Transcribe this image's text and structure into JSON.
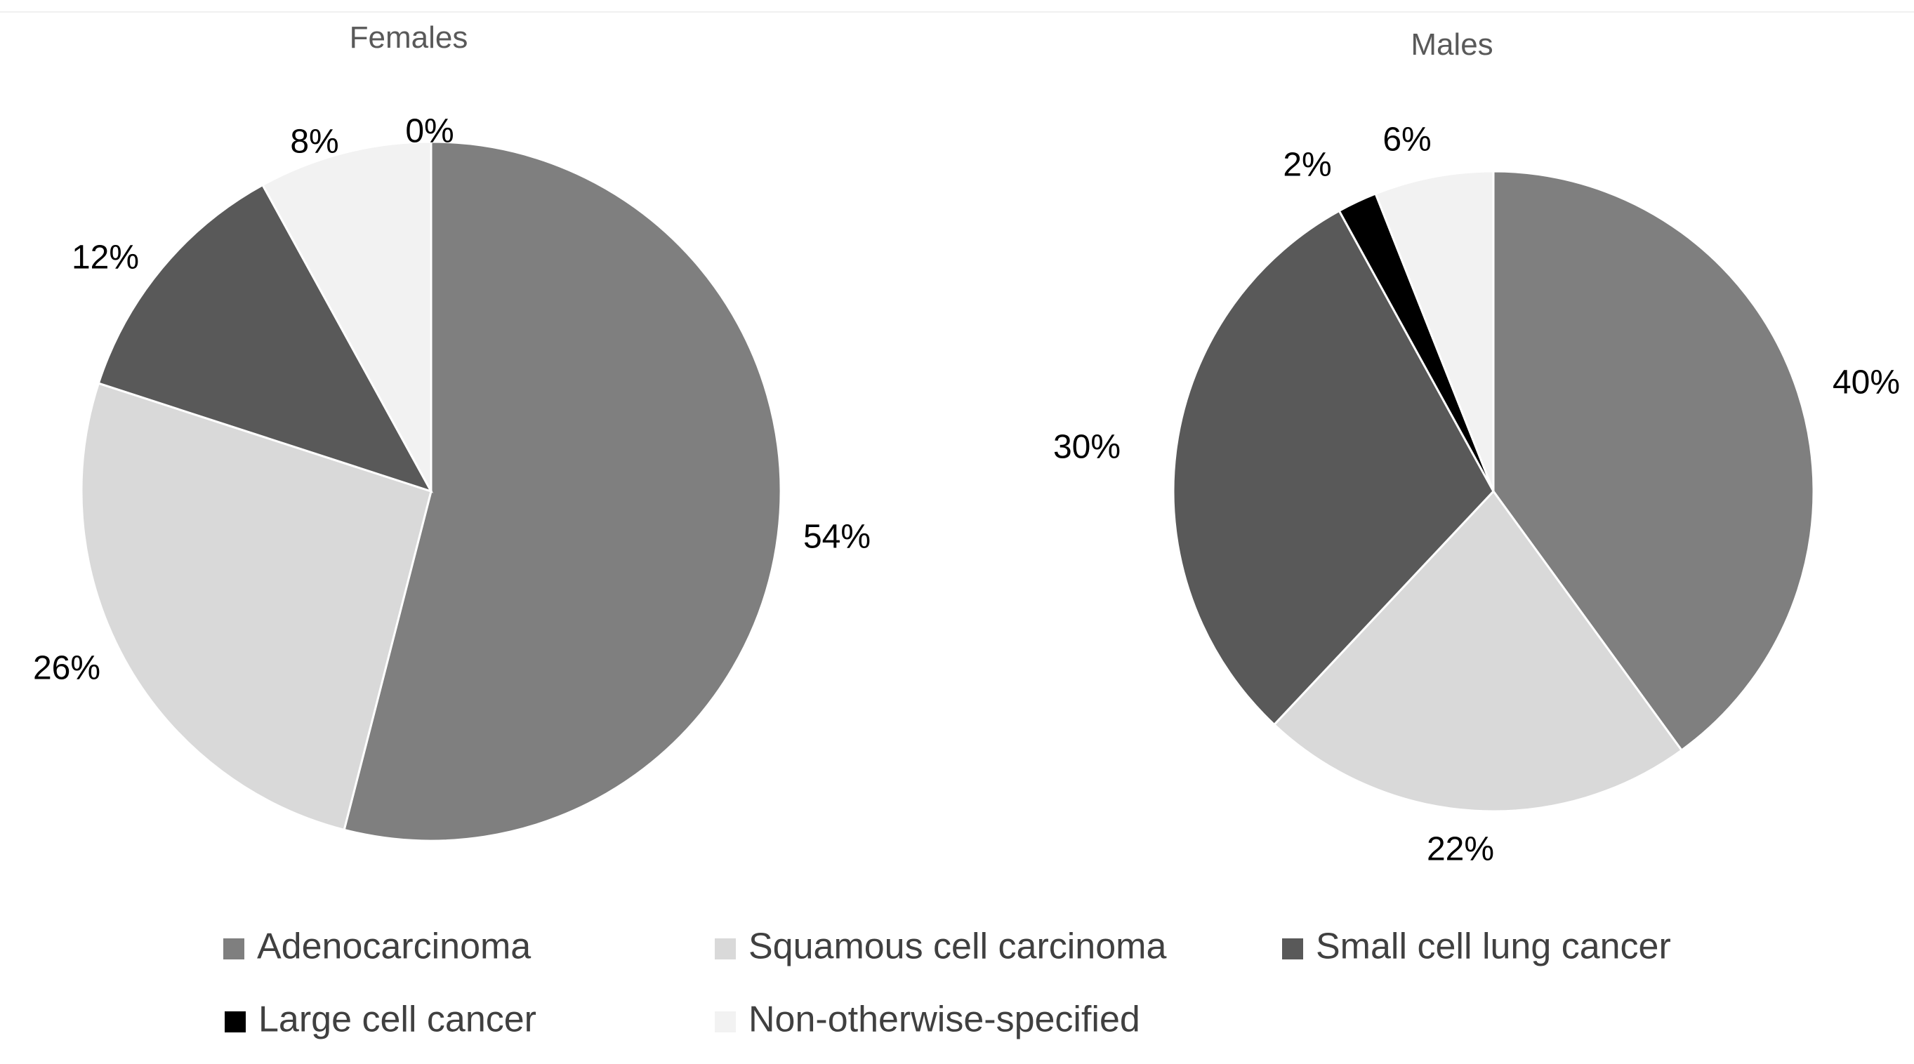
{
  "chart_data": [
    {
      "type": "pie",
      "title": "Females",
      "categories": [
        "Adenocarcinoma",
        "Squamous cell carcinoma",
        "Small cell lung cancer",
        "Large cell cancer",
        "Non-otherwise-specified"
      ],
      "values": [
        54,
        26,
        12,
        0,
        8
      ],
      "data_labels": [
        "54%",
        "26%",
        "12%",
        "0%",
        "8%"
      ],
      "start_angle_deg": 0,
      "direction": "clockwise"
    },
    {
      "type": "pie",
      "title": "Males",
      "categories": [
        "Adenocarcinoma",
        "Squamous cell carcinoma",
        "Small cell lung cancer",
        "Large cell cancer",
        "Non-otherwise-specified"
      ],
      "values": [
        40,
        22,
        30,
        2,
        6
      ],
      "data_labels": [
        "40%",
        "22%",
        "30%",
        "2%",
        "6%"
      ],
      "start_angle_deg": 0,
      "direction": "clockwise"
    }
  ],
  "legend": {
    "placement": "bottom",
    "items": [
      {
        "label": "Adenocarcinoma",
        "color": "#7f7f7f"
      },
      {
        "label": "Squamous cell carcinoma",
        "color": "#d9d9d9"
      },
      {
        "label": "Small cell lung cancer",
        "color": "#595959"
      },
      {
        "label": "Large cell cancer",
        "color": "#000000"
      },
      {
        "label": "Non-otherwise-specified",
        "color": "#f2f2f2"
      }
    ]
  }
}
